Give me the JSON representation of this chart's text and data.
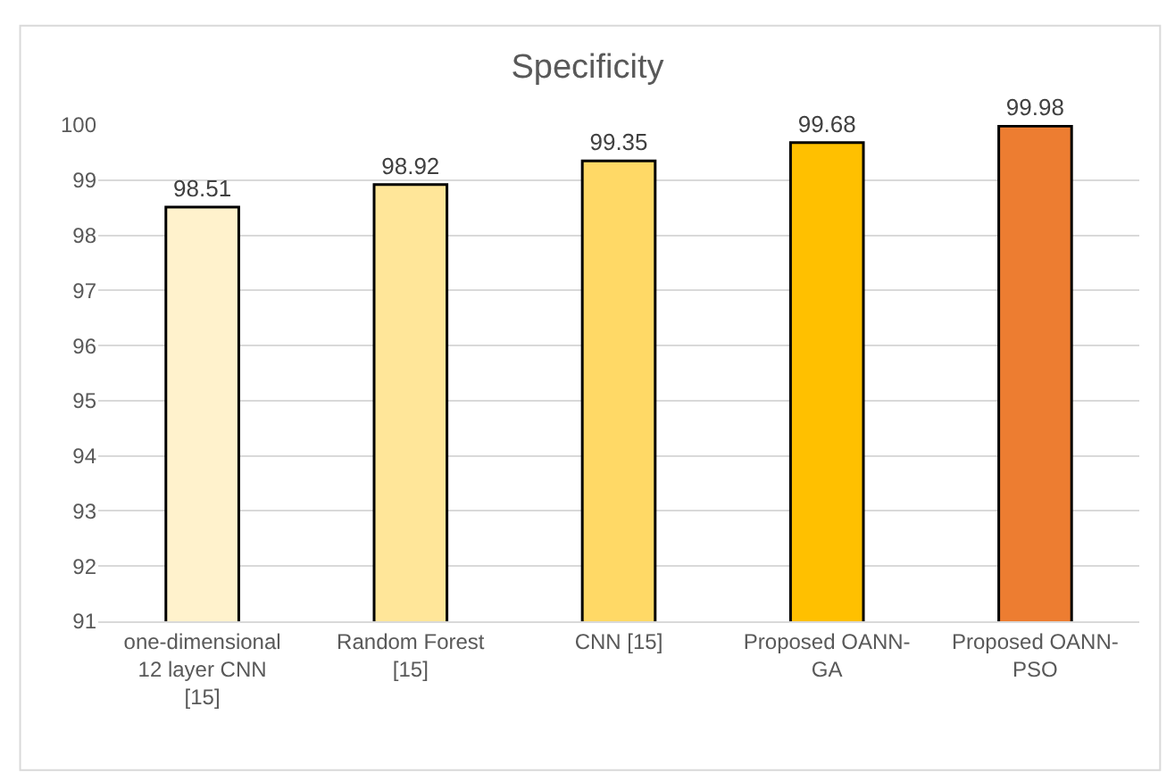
{
  "chart_data": {
    "type": "bar",
    "title": "Specificity",
    "categories": [
      "one-dimensional 12 layer CNN [15]",
      "Random Forest [15]",
      "CNN [15]",
      "Proposed OANN-GA",
      "Proposed OANN-PSO"
    ],
    "values": [
      98.51,
      98.92,
      99.35,
      99.68,
      99.98
    ],
    "colors": [
      "#fff2cc",
      "#ffe699",
      "#ffd966",
      "#ffc000",
      "#ed7d31"
    ],
    "ylim": [
      91,
      100
    ],
    "yticks": [
      91,
      92,
      93,
      94,
      95,
      96,
      97,
      98,
      99,
      100
    ],
    "grid": "y",
    "data_labels": true,
    "legend": false
  }
}
